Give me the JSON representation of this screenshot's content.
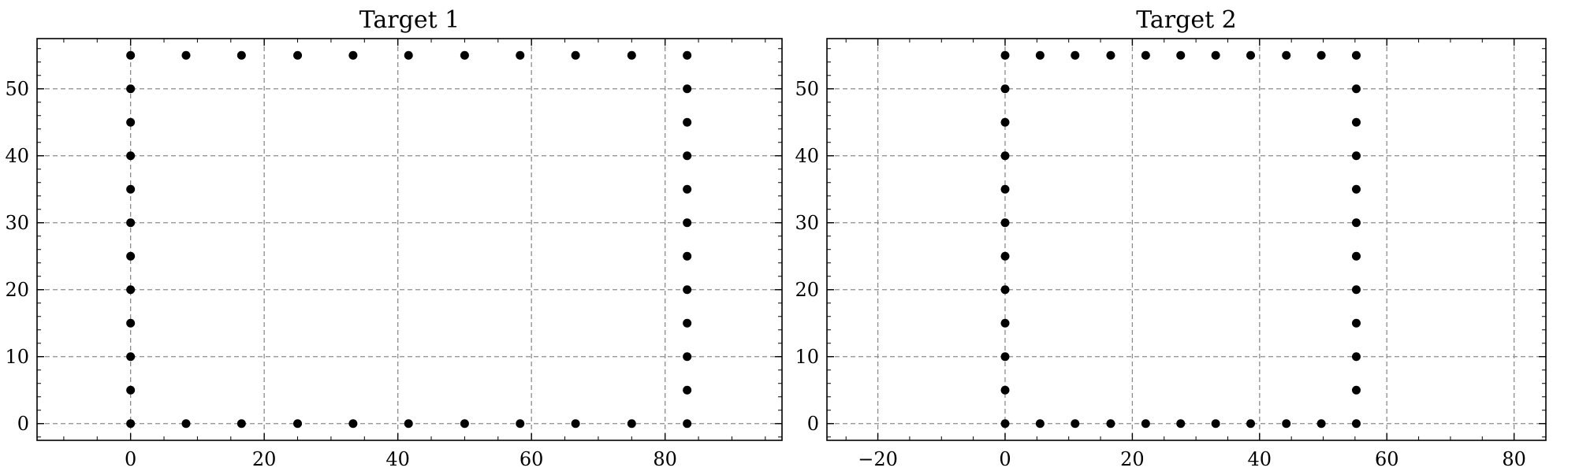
{
  "chart_data": [
    {
      "type": "scatter",
      "title": "Target 1",
      "xlabel": "",
      "ylabel": "",
      "xlim": [
        -14,
        97.5
      ],
      "ylim": [
        -2.5,
        57.5
      ],
      "xticks": [
        0,
        20,
        40,
        60,
        80
      ],
      "yticks": [
        0,
        10,
        20,
        30,
        40,
        50
      ],
      "grid": true,
      "color": "#000000",
      "points": [
        [
          0,
          0
        ],
        [
          0,
          5
        ],
        [
          0,
          10
        ],
        [
          0,
          15
        ],
        [
          0,
          20
        ],
        [
          0,
          25
        ],
        [
          0,
          30
        ],
        [
          0,
          35
        ],
        [
          0,
          40
        ],
        [
          0,
          45
        ],
        [
          0,
          50
        ],
        [
          0,
          55
        ],
        [
          8.3,
          55
        ],
        [
          16.6,
          55
        ],
        [
          25,
          55
        ],
        [
          33.3,
          55
        ],
        [
          41.6,
          55
        ],
        [
          50,
          55
        ],
        [
          58.3,
          55
        ],
        [
          66.6,
          55
        ],
        [
          75,
          55
        ],
        [
          83.3,
          55
        ],
        [
          83.3,
          50
        ],
        [
          83.3,
          45
        ],
        [
          83.3,
          40
        ],
        [
          83.3,
          35
        ],
        [
          83.3,
          30
        ],
        [
          83.3,
          25
        ],
        [
          83.3,
          20
        ],
        [
          83.3,
          15
        ],
        [
          83.3,
          10
        ],
        [
          83.3,
          5
        ],
        [
          83.3,
          0
        ],
        [
          8.3,
          0
        ],
        [
          16.6,
          0
        ],
        [
          25,
          0
        ],
        [
          33.3,
          0
        ],
        [
          41.6,
          0
        ],
        [
          50,
          0
        ],
        [
          58.3,
          0
        ],
        [
          66.6,
          0
        ],
        [
          75,
          0
        ]
      ]
    },
    {
      "type": "scatter",
      "title": "Target 2",
      "xlabel": "",
      "ylabel": "",
      "xlim": [
        -28,
        85
      ],
      "ylim": [
        -2.5,
        57.5
      ],
      "xticks": [
        -20,
        0,
        20,
        40,
        60,
        80
      ],
      "yticks": [
        0,
        10,
        20,
        30,
        40,
        50
      ],
      "grid": true,
      "color": "#000000",
      "points": [
        [
          0,
          0
        ],
        [
          0,
          5
        ],
        [
          0,
          10
        ],
        [
          0,
          15
        ],
        [
          0,
          20
        ],
        [
          0,
          25
        ],
        [
          0,
          30
        ],
        [
          0,
          35
        ],
        [
          0,
          40
        ],
        [
          0,
          45
        ],
        [
          0,
          50
        ],
        [
          0,
          55
        ],
        [
          5.5,
          55
        ],
        [
          11,
          55
        ],
        [
          16.6,
          55
        ],
        [
          22.1,
          55
        ],
        [
          27.6,
          55
        ],
        [
          33.1,
          55
        ],
        [
          38.6,
          55
        ],
        [
          44.2,
          55
        ],
        [
          49.7,
          55
        ],
        [
          55.2,
          55
        ],
        [
          55.2,
          50
        ],
        [
          55.2,
          45
        ],
        [
          55.2,
          40
        ],
        [
          55.2,
          35
        ],
        [
          55.2,
          30
        ],
        [
          55.2,
          25
        ],
        [
          55.2,
          20
        ],
        [
          55.2,
          15
        ],
        [
          55.2,
          10
        ],
        [
          55.2,
          5
        ],
        [
          55.2,
          0
        ],
        [
          5.5,
          0
        ],
        [
          11,
          0
        ],
        [
          16.6,
          0
        ],
        [
          22.1,
          0
        ],
        [
          27.6,
          0
        ],
        [
          33.1,
          0
        ],
        [
          38.6,
          0
        ],
        [
          44.2,
          0
        ],
        [
          49.7,
          0
        ]
      ]
    }
  ]
}
